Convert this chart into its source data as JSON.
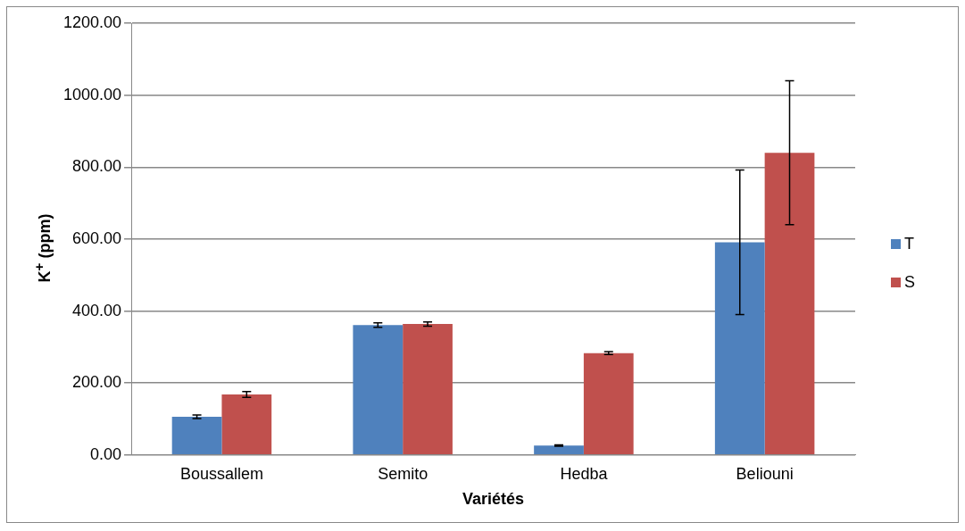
{
  "chart_data": {
    "type": "bar",
    "xlabel": "Variétés",
    "ylabel": "K$^{+}$ (ppm)",
    "categories": [
      "Boussallem",
      "Semito",
      "Hedba",
      "Beliouni"
    ],
    "series": [
      {
        "name": "T",
        "color": "#4f81bd",
        "values": [
          106,
          361,
          26,
          591
        ],
        "errors": [
          5,
          6,
          2,
          201
        ]
      },
      {
        "name": "S",
        "color": "#c0504d",
        "values": [
          168,
          364,
          283,
          840
        ],
        "errors": [
          8,
          6,
          4,
          200
        ]
      }
    ],
    "ylim": [
      0,
      1200
    ],
    "yticks": [
      {
        "value": 0,
        "label": "0.00"
      },
      {
        "value": 200,
        "label": "200.00"
      },
      {
        "value": 400,
        "label": "400.00"
      },
      {
        "value": 600,
        "label": "600.00"
      },
      {
        "value": 800,
        "label": "800.00"
      },
      {
        "value": 1000,
        "label": "1000.00"
      },
      {
        "value": 1200,
        "label": "1200.00"
      }
    ],
    "grid": "y",
    "legend": "right"
  }
}
